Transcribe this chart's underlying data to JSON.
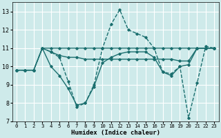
{
  "background_color": "#ceeaea",
  "grid_color": "#ffffff",
  "line_color": "#1a6e6e",
  "xlabel": "Humidex (Indice chaleur)",
  "ylim": [
    7,
    13.5
  ],
  "xlim": [
    -0.5,
    23.5
  ],
  "yticks": [
    7,
    8,
    9,
    10,
    11,
    12,
    13
  ],
  "xticks": [
    0,
    1,
    2,
    3,
    4,
    5,
    6,
    7,
    8,
    9,
    10,
    11,
    12,
    13,
    14,
    15,
    16,
    17,
    18,
    19,
    20,
    21,
    22,
    23
  ],
  "lines": [
    {
      "x": [
        0,
        1,
        2,
        3,
        4,
        5,
        6,
        7,
        8,
        9,
        10,
        11,
        12,
        13,
        14,
        15,
        16,
        17,
        18,
        19,
        20,
        21,
        22,
        23
      ],
      "y": [
        9.8,
        9.8,
        9.8,
        11.0,
        10.8,
        10.5,
        9.2,
        7.8,
        8.0,
        9.0,
        11.0,
        12.3,
        13.1,
        12.0,
        11.8,
        11.6,
        11.0,
        9.7,
        9.6,
        10.0,
        7.2,
        9.1,
        11.1,
        11.0
      ],
      "linestyle": "--",
      "linewidth": 1.0
    },
    {
      "x": [
        0,
        1,
        2,
        3,
        4,
        5,
        6,
        7,
        8,
        9,
        10,
        11,
        12,
        13,
        14,
        15,
        16,
        17,
        18,
        19,
        20,
        21,
        22,
        23
      ],
      "y": [
        9.8,
        9.8,
        9.8,
        11.0,
        11.0,
        11.0,
        11.0,
        11.0,
        11.0,
        11.0,
        11.0,
        11.0,
        11.0,
        11.0,
        11.0,
        11.0,
        11.0,
        11.0,
        11.0,
        11.0,
        11.0,
        11.0,
        11.0,
        11.0
      ],
      "linestyle": "-",
      "linewidth": 1.0
    },
    {
      "x": [
        0,
        1,
        2,
        3,
        4,
        5,
        6,
        7,
        8,
        9,
        10,
        11,
        12,
        13,
        14,
        15,
        16,
        17,
        18,
        19,
        20,
        21,
        22,
        23
      ],
      "y": [
        9.8,
        9.8,
        9.8,
        11.0,
        10.8,
        10.6,
        10.5,
        10.5,
        10.4,
        10.4,
        10.4,
        10.4,
        10.4,
        10.4,
        10.4,
        10.4,
        10.4,
        10.4,
        10.4,
        10.3,
        10.3,
        11.0,
        11.0,
        11.0
      ],
      "linestyle": "-",
      "linewidth": 1.0
    },
    {
      "x": [
        3,
        4,
        5,
        6,
        7,
        8,
        9,
        10,
        11,
        12,
        13,
        14,
        15,
        16,
        17,
        18,
        19,
        20,
        21,
        22,
        23
      ],
      "y": [
        11.0,
        10.0,
        9.5,
        8.8,
        7.9,
        8.0,
        8.9,
        10.2,
        10.5,
        10.7,
        10.8,
        10.8,
        10.8,
        10.5,
        9.7,
        9.5,
        10.0,
        10.1,
        11.0,
        11.0,
        11.0
      ],
      "linestyle": "-",
      "linewidth": 1.0
    }
  ]
}
